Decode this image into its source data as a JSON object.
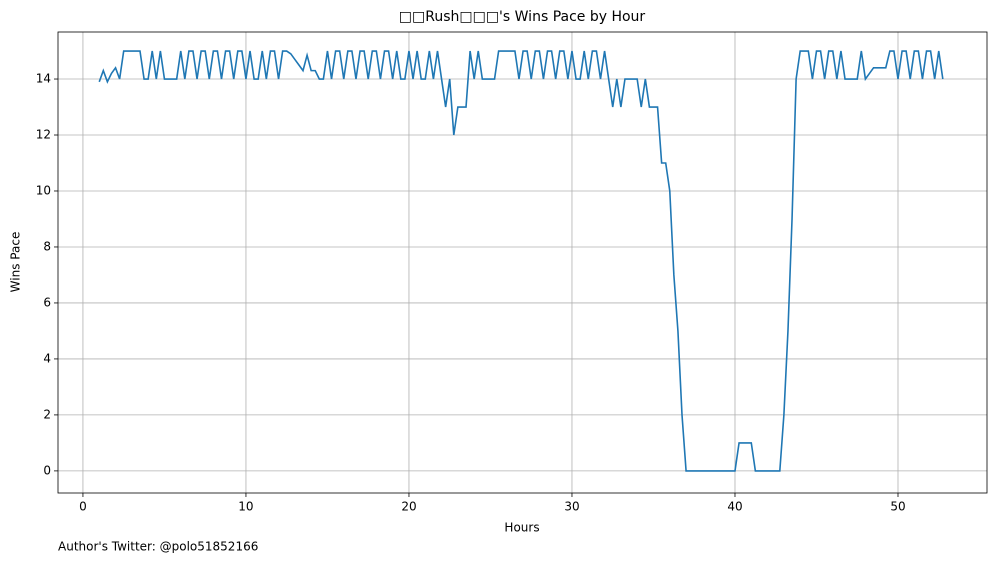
{
  "chart_data": {
    "type": "line",
    "title": "□□Rush□□□'s Wins Pace by Hour",
    "x_label": "Hours",
    "y_label": "Wins Pace",
    "footnote": "Author's Twitter: @polo51852166",
    "xlim": [
      -1.53,
      55.46
    ],
    "ylim": [
      -0.79,
      15.68
    ],
    "xticks": [
      0,
      10,
      20,
      30,
      40,
      50
    ],
    "yticks": [
      0,
      2,
      4,
      6,
      8,
      10,
      12,
      14
    ],
    "grid": true,
    "x": [
      1,
      1.25,
      1.5,
      1.75,
      2,
      2.25,
      2.5,
      2.75,
      3,
      3.25,
      3.5,
      3.75,
      4,
      4.25,
      4.5,
      4.75,
      5,
      5.25,
      5.5,
      5.75,
      6,
      6.25,
      6.5,
      6.75,
      7,
      7.25,
      7.5,
      7.75,
      8,
      8.25,
      8.5,
      8.75,
      9,
      9.25,
      9.5,
      9.75,
      10,
      10.25,
      10.5,
      10.75,
      11,
      11.25,
      11.5,
      11.75,
      12,
      12.25,
      12.5,
      12.75,
      13,
      13.25,
      13.5,
      13.75,
      14,
      14.25,
      14.5,
      14.75,
      15,
      15.25,
      15.5,
      15.75,
      16,
      16.25,
      16.5,
      16.75,
      17,
      17.25,
      17.5,
      17.75,
      18,
      18.25,
      18.5,
      18.75,
      19,
      19.25,
      19.5,
      19.75,
      20,
      20.25,
      20.5,
      20.75,
      21,
      21.25,
      21.5,
      21.75,
      22,
      22.25,
      22.5,
      22.75,
      23,
      23.25,
      23.5,
      23.75,
      24,
      24.25,
      24.5,
      24.75,
      25,
      25.25,
      25.5,
      25.75,
      26,
      26.25,
      26.5,
      26.75,
      27,
      27.25,
      27.5,
      27.75,
      28,
      28.25,
      28.5,
      28.75,
      29,
      29.25,
      29.5,
      29.75,
      30,
      30.25,
      30.5,
      30.75,
      31,
      31.25,
      31.5,
      31.75,
      32,
      32.25,
      32.5,
      32.75,
      33,
      33.25,
      33.5,
      33.75,
      34,
      34.25,
      34.5,
      34.75,
      35,
      35.25,
      35.5,
      35.75,
      36,
      36.25,
      36.5,
      36.75,
      37,
      37.25,
      37.5,
      37.75,
      38,
      38.25,
      38.5,
      38.75,
      39,
      39.25,
      39.5,
      39.75,
      40,
      40.25,
      40.5,
      40.75,
      41,
      41.25,
      41.5,
      41.75,
      42,
      42.25,
      42.5,
      42.75,
      43,
      43.25,
      43.5,
      43.75,
      44,
      44.25,
      44.5,
      44.75,
      45,
      45.25,
      45.5,
      45.75,
      46,
      46.25,
      46.5,
      46.75,
      47,
      47.25,
      47.5,
      47.75,
      48,
      48.25,
      48.5,
      48.75,
      49,
      49.25,
      49.5,
      49.75,
      50,
      50.25,
      50.5,
      50.75,
      51,
      51.25,
      51.5,
      51.75,
      52,
      52.25,
      52.5,
      52.75
    ],
    "series": [
      {
        "color": "#1f77b4",
        "values": [
          13.9,
          14.3,
          13.9,
          14.2,
          14.4,
          14,
          15,
          15,
          15,
          15,
          15,
          14,
          14,
          15,
          14,
          15,
          14,
          14,
          14,
          14,
          15,
          14,
          15,
          15,
          14,
          15,
          15,
          14,
          15,
          15,
          14,
          15,
          15,
          14,
          15,
          15,
          14,
          15,
          14,
          14,
          15,
          14,
          15,
          15,
          14,
          15,
          15,
          14.9,
          14.7,
          14.5,
          14.3,
          14.85,
          14.3,
          14.3,
          14,
          14,
          15,
          14,
          15,
          15,
          14,
          15,
          15,
          14,
          15,
          15,
          14,
          15,
          15,
          14,
          15,
          15,
          14,
          15,
          14,
          14,
          15,
          14,
          15,
          14,
          14,
          15,
          14,
          15,
          14,
          13,
          14,
          12,
          13,
          13,
          13,
          15,
          14,
          15,
          14,
          14,
          14,
          14,
          15,
          15,
          15,
          15,
          15,
          14,
          15,
          15,
          14,
          15,
          15,
          14,
          15,
          15,
          14,
          15,
          15,
          14,
          15,
          14,
          14,
          15,
          14,
          15,
          15,
          14,
          15,
          14,
          13,
          14,
          13,
          14,
          14,
          14,
          14,
          13,
          14,
          13,
          13,
          13,
          11,
          11,
          10,
          7,
          5,
          2,
          0,
          0,
          0,
          0,
          0,
          0,
          0,
          0,
          0,
          0,
          0,
          0,
          0,
          1,
          1,
          1,
          1,
          0,
          0,
          0,
          0,
          0,
          0,
          0,
          2,
          5,
          9,
          14,
          15,
          15,
          15,
          14,
          15,
          15,
          14,
          15,
          15,
          14,
          15,
          14,
          14,
          14,
          14,
          15,
          14,
          14.2,
          14.4,
          14.4,
          14.4,
          14.4,
          15,
          15,
          14,
          15,
          15,
          14,
          15,
          15,
          14,
          15,
          15,
          14,
          15,
          14
        ]
      }
    ]
  }
}
